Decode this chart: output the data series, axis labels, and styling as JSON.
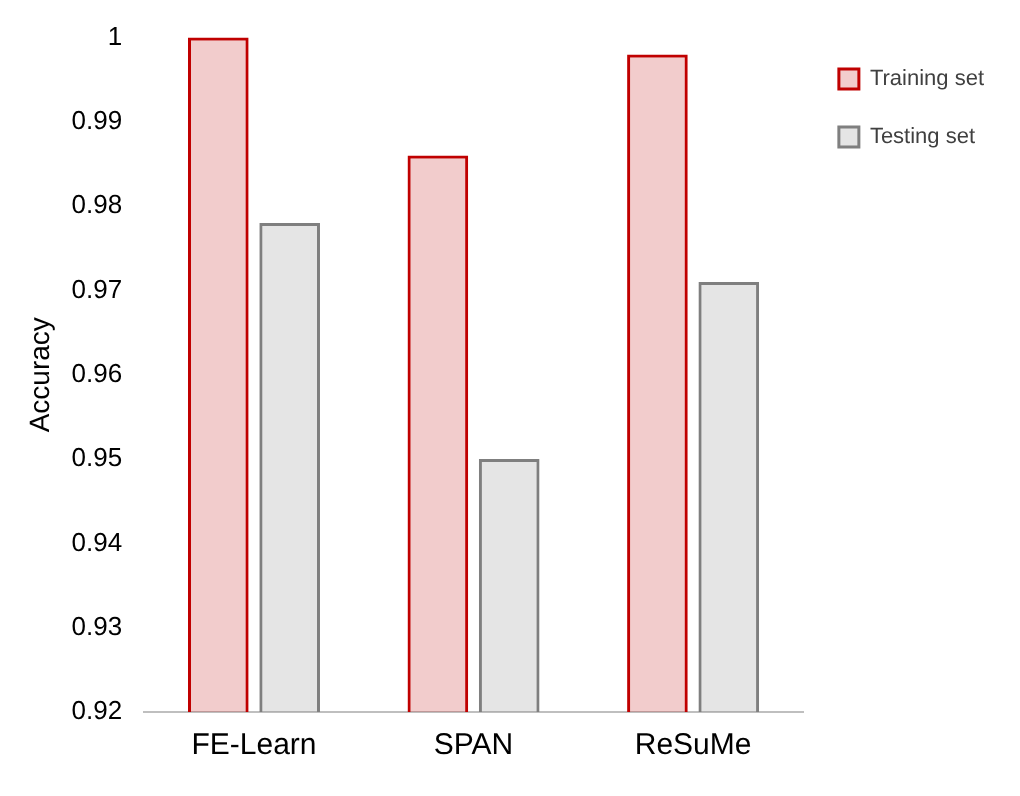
{
  "chart_data": {
    "type": "bar",
    "ylabel": "Accuracy",
    "categories": [
      "FE-Learn",
      "SPAN",
      "ReSuMe"
    ],
    "series": [
      {
        "name": "Training set",
        "color": "#c00000",
        "values": [
          1.0,
          0.986,
          0.998
        ]
      },
      {
        "name": "Testing set",
        "color": "#7f7f7f",
        "values": [
          0.978,
          0.95,
          0.971
        ]
      }
    ],
    "ylim": [
      0.92,
      1
    ],
    "yticks": [
      0.92,
      0.93,
      0.94,
      0.95,
      0.96,
      0.97,
      0.98,
      0.99,
      1
    ],
    "grid": false,
    "legend": "top right"
  }
}
